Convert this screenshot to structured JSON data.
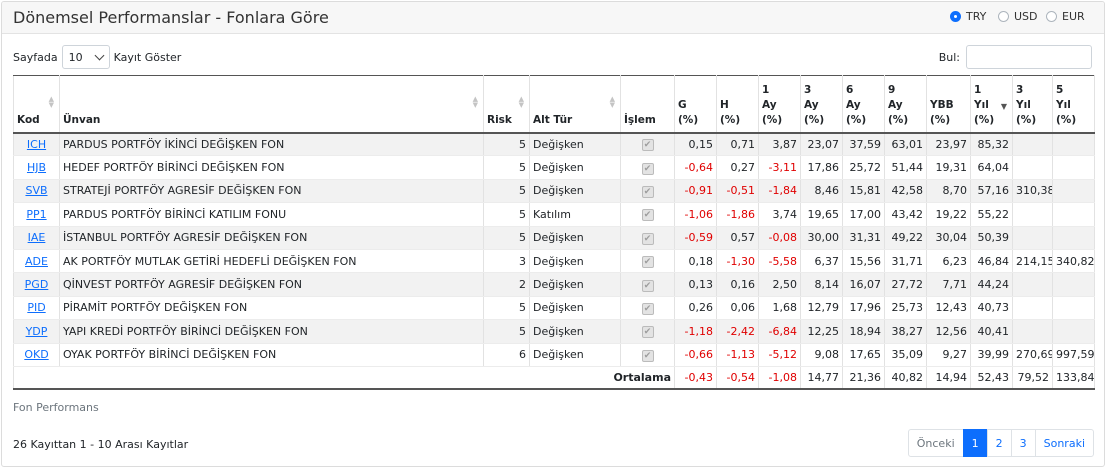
{
  "title": "Dönemsel Performanslar - Fonlara Göre",
  "currency": {
    "options": [
      "TRY",
      "USD",
      "EUR"
    ],
    "selected": "TRY"
  },
  "length_menu": {
    "prefix": "Sayfada",
    "value": "10",
    "suffix": "Kayıt Göster"
  },
  "search": {
    "label": "Bul:",
    "value": ""
  },
  "table": {
    "headers": {
      "kod": "Kod",
      "unvan": "Ünvan",
      "risk": "Risk",
      "alt_tur": "Alt Tür",
      "islem": "İşlem",
      "g_1": "G",
      "g_2": "(%)",
      "h_1": "H",
      "h_2": "(%)",
      "ay1_1": "1",
      "ay1_2": "Ay",
      "ay1_3": "(%)",
      "ay3_1": "3",
      "ay3_2": "Ay",
      "ay3_3": "(%)",
      "ay6_1": "6",
      "ay6_2": "Ay",
      "ay6_3": "(%)",
      "ay9_1": "9",
      "ay9_2": "Ay",
      "ay9_3": "(%)",
      "ybb_1": "YBB",
      "ybb_2": "(%)",
      "y1_1": "1",
      "y1_2": "Yıl",
      "y1_3": "(%)",
      "y3_1": "3",
      "y3_2": "Yıl",
      "y3_3": "(%)",
      "y5_1": "5",
      "y5_2": "Yıl",
      "y5_3": "(%)"
    },
    "rows": [
      {
        "kod": "ICH",
        "unvan": "PARDUS PORTFÖY İKİNCİ DEĞİŞKEN FON",
        "risk": "5",
        "alt_tur": "Değişken",
        "g": "0,15",
        "h": "0,71",
        "ay1": "3,87",
        "ay3": "23,07",
        "ay6": "37,59",
        "ay9": "63,01",
        "ybb": "23,97",
        "y1": "85,32",
        "y3": "",
        "y5": ""
      },
      {
        "kod": "HJB",
        "unvan": "HEDEF PORTFÖY BİRİNCİ DEĞİŞKEN FON",
        "risk": "5",
        "alt_tur": "Değişken",
        "g": "-0,64",
        "h": "0,27",
        "ay1": "-3,11",
        "ay3": "17,86",
        "ay6": "25,72",
        "ay9": "51,44",
        "ybb": "19,31",
        "y1": "64,04",
        "y3": "",
        "y5": ""
      },
      {
        "kod": "SVB",
        "unvan": "STRATEJİ PORTFÖY AGRESİF DEĞİŞKEN FON",
        "risk": "5",
        "alt_tur": "Değişken",
        "g": "-0,91",
        "h": "-0,51",
        "ay1": "-1,84",
        "ay3": "8,46",
        "ay6": "15,81",
        "ay9": "42,58",
        "ybb": "8,70",
        "y1": "57,16",
        "y3": "310,38",
        "y5": ""
      },
      {
        "kod": "PP1",
        "unvan": "PARDUS PORTFÖY BİRİNCİ KATILIM FONU",
        "risk": "5",
        "alt_tur": "Katılım",
        "g": "-1,06",
        "h": "-1,86",
        "ay1": "3,74",
        "ay3": "19,65",
        "ay6": "17,00",
        "ay9": "43,42",
        "ybb": "19,22",
        "y1": "55,22",
        "y3": "",
        "y5": ""
      },
      {
        "kod": "IAE",
        "unvan": "İSTANBUL PORTFÖY AGRESİF DEĞİŞKEN FON",
        "risk": "5",
        "alt_tur": "Değişken",
        "g": "-0,59",
        "h": "0,57",
        "ay1": "-0,08",
        "ay3": "30,00",
        "ay6": "31,31",
        "ay9": "49,22",
        "ybb": "30,04",
        "y1": "50,39",
        "y3": "",
        "y5": ""
      },
      {
        "kod": "ADE",
        "unvan": "AK PORTFÖY MUTLAK GETİRİ HEDEFLİ DEĞİŞKEN FON",
        "risk": "3",
        "alt_tur": "Değişken",
        "g": "0,18",
        "h": "-1,30",
        "ay1": "-5,58",
        "ay3": "6,37",
        "ay6": "15,56",
        "ay9": "31,71",
        "ybb": "6,23",
        "y1": "46,84",
        "y3": "214,15",
        "y5": "340,82"
      },
      {
        "kod": "PGD",
        "unvan": "QİNVEST PORTFÖY AGRESİF DEĞİŞKEN FON",
        "risk": "2",
        "alt_tur": "Değişken",
        "g": "0,13",
        "h": "0,16",
        "ay1": "2,50",
        "ay3": "8,14",
        "ay6": "16,07",
        "ay9": "27,72",
        "ybb": "7,71",
        "y1": "44,24",
        "y3": "",
        "y5": ""
      },
      {
        "kod": "PID",
        "unvan": "PİRAMİT PORTFÖY DEĞİŞKEN FON",
        "risk": "5",
        "alt_tur": "Değişken",
        "g": "0,26",
        "h": "0,06",
        "ay1": "1,68",
        "ay3": "12,79",
        "ay6": "17,96",
        "ay9": "25,73",
        "ybb": "12,43",
        "y1": "40,73",
        "y3": "",
        "y5": ""
      },
      {
        "kod": "YDP",
        "unvan": "YAPI KREDİ PORTFÖY BİRİNCİ DEĞİŞKEN FON",
        "risk": "5",
        "alt_tur": "Değişken",
        "g": "-1,18",
        "h": "-2,42",
        "ay1": "-6,84",
        "ay3": "12,25",
        "ay6": "18,94",
        "ay9": "38,27",
        "ybb": "12,56",
        "y1": "40,41",
        "y3": "",
        "y5": ""
      },
      {
        "kod": "OKD",
        "unvan": "OYAK PORTFÖY BİRİNCİ DEĞİŞKEN FON",
        "risk": "6",
        "alt_tur": "Değişken",
        "g": "-0,66",
        "h": "-1,13",
        "ay1": "-5,12",
        "ay3": "9,08",
        "ay6": "17,65",
        "ay9": "35,09",
        "ybb": "9,27",
        "y1": "39,99",
        "y3": "270,69",
        "y5": "997,59"
      }
    ],
    "footer": {
      "label": "Ortalama",
      "g": "-0,43",
      "h": "-0,54",
      "ay1": "-1,08",
      "ay3": "14,77",
      "ay6": "21,36",
      "ay9": "40,82",
      "ybb": "14,94",
      "y1": "52,43",
      "y3": "79,52",
      "y5": "133,84"
    }
  },
  "caption": "Fon Performans",
  "info": "26 Kayıttan 1 - 10 Arası Kayıtlar",
  "pagination": {
    "prev": "Önceki",
    "pages": [
      "1",
      "2",
      "3"
    ],
    "current": "1",
    "next": "Sonraki"
  },
  "colors": {
    "accent": "#0d6efd",
    "negative": "#e00000",
    "stripe": "#f2f2f2"
  }
}
